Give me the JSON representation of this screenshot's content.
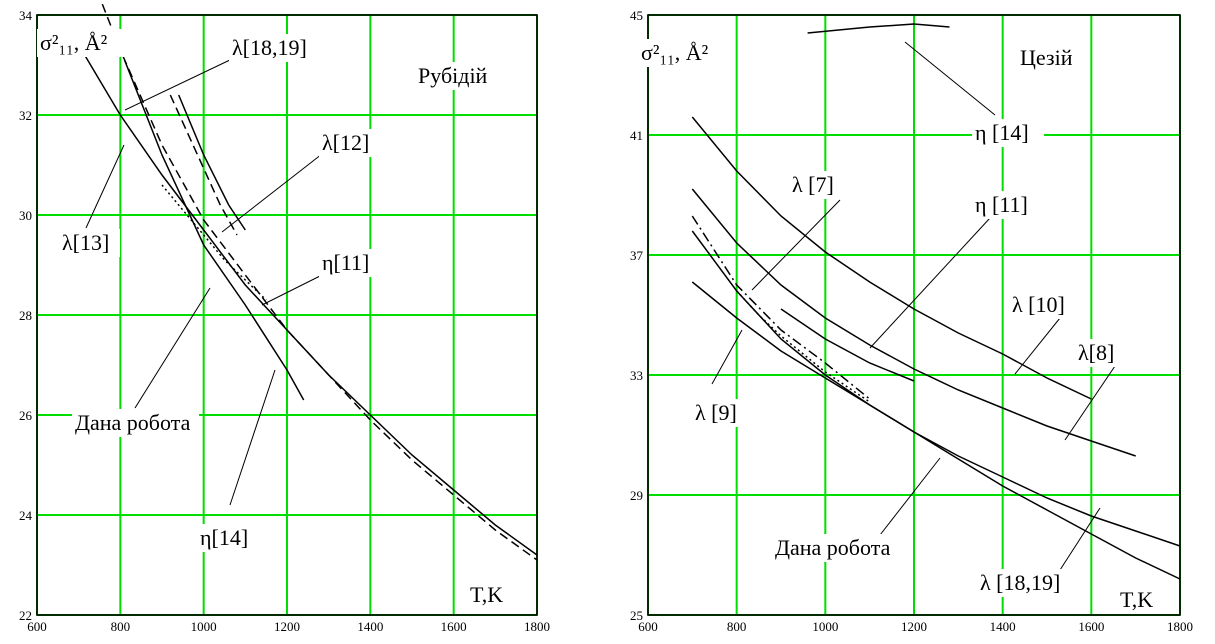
{
  "chart_data": [
    {
      "type": "line",
      "title": "Рубідій",
      "ylabel": "σ²₁₁, Å²",
      "xlabel": "T,K",
      "grid": true,
      "xlim": [
        600,
        1800
      ],
      "ylim": [
        22,
        34
      ],
      "xticks": [
        "600",
        "800",
        "1000",
        "1200",
        "1400",
        "1600",
        "1800"
      ],
      "yticks": [
        "22",
        "24",
        "26",
        "28",
        "30",
        "32",
        "34"
      ],
      "series": [
        {
          "name": "Дана робота",
          "style": "solid",
          "x": [
            700,
            800,
            900,
            1000,
            1100,
            1200,
            1300,
            1400,
            1500,
            1600,
            1700,
            1800
          ],
          "y": [
            33.4,
            32.0,
            30.8,
            29.7,
            28.6,
            27.7,
            26.8,
            26.0,
            25.2,
            24.5,
            23.8,
            23.2
          ]
        },
        {
          "name": "λ[18,19]",
          "style": "dashed",
          "x": [
            720,
            800,
            900,
            1000,
            1100,
            1200,
            1300,
            1400,
            1500,
            1600,
            1700,
            1800
          ],
          "y": [
            35.0,
            33.3,
            31.4,
            29.9,
            28.8,
            27.7,
            26.8,
            25.9,
            25.1,
            24.4,
            23.7,
            23.1
          ]
        },
        {
          "name": "λ[13]",
          "style": "solid",
          "x": [
            810,
            900,
            1000,
            1100,
            1200,
            1240
          ],
          "y": [
            33.1,
            31.2,
            29.4,
            28.2,
            26.9,
            26.3
          ]
        },
        {
          "name": "λ[12]",
          "style": "dashed",
          "x": [
            920,
            980,
            1040,
            1080
          ],
          "y": [
            32.4,
            31.3,
            30.2,
            29.6
          ]
        },
        {
          "name": "η[14]",
          "style": "solid",
          "x": [
            940,
            1000,
            1060,
            1100
          ],
          "y": [
            32.4,
            31.2,
            30.2,
            29.7
          ]
        },
        {
          "name": "η[11]",
          "style": "dotted",
          "x": [
            900,
            950,
            1000,
            1050,
            1100,
            1150
          ],
          "y": [
            30.6,
            30.1,
            29.6,
            29.1,
            28.7,
            28.3
          ]
        }
      ],
      "annotations": [
        "λ[18,19]",
        "λ[12]",
        "λ[13]",
        "η[11]",
        "Дана робота",
        "η[14]"
      ]
    },
    {
      "type": "line",
      "title": "Цезій",
      "ylabel": "σ²₁₁, Å²",
      "xlabel": "T,K",
      "grid": true,
      "xlim": [
        600,
        1800
      ],
      "ylim": [
        25,
        45
      ],
      "xticks": [
        "600",
        "800",
        "1000",
        "1200",
        "1400",
        "1600",
        "1800"
      ],
      "yticks": [
        "25",
        "29",
        "33",
        "37",
        "41",
        "45"
      ],
      "series": [
        {
          "name": "η [14]",
          "style": "solid",
          "x": [
            960,
            1100,
            1200,
            1280
          ],
          "y": [
            44.4,
            44.6,
            44.7,
            44.6
          ]
        },
        {
          "name": "λ [10]",
          "style": "solid",
          "x": [
            700,
            800,
            900,
            1000,
            1100,
            1200,
            1300,
            1400,
            1500,
            1600
          ],
          "y": [
            41.6,
            39.8,
            38.3,
            37.1,
            36.1,
            35.2,
            34.4,
            33.7,
            32.9,
            32.2
          ]
        },
        {
          "name": "λ[8]",
          "style": "solid",
          "x": [
            700,
            800,
            900,
            1000,
            1100,
            1200,
            1300,
            1400,
            1500,
            1600,
            1700
          ],
          "y": [
            39.2,
            37.4,
            36.0,
            34.9,
            34.0,
            33.2,
            32.5,
            31.9,
            31.3,
            30.8,
            30.3
          ]
        },
        {
          "name": "η [11]",
          "style": "solid",
          "x": [
            900,
            1000,
            1100,
            1200
          ],
          "y": [
            35.2,
            34.2,
            33.4,
            32.8
          ]
        },
        {
          "name": "λ [18,19]",
          "style": "solid",
          "x": [
            700,
            800,
            900,
            1000,
            1100,
            1200,
            1300,
            1400,
            1500,
            1600,
            1700,
            1800
          ],
          "y": [
            37.8,
            35.8,
            34.2,
            33.0,
            32.0,
            31.1,
            30.3,
            29.6,
            28.9,
            28.3,
            27.8,
            27.3
          ]
        },
        {
          "name": "Дана робота",
          "style": "solid",
          "x": [
            700,
            800,
            900,
            1000,
            1100,
            1200,
            1300,
            1400,
            1500,
            1600,
            1700,
            1800
          ],
          "y": [
            36.1,
            34.9,
            33.8,
            32.9,
            32.0,
            31.1,
            30.2,
            29.3,
            28.5,
            27.7,
            26.9,
            26.2
          ]
        },
        {
          "name": "λ [7]",
          "style": "dashdot",
          "x": [
            700,
            800,
            900,
            1000,
            1100
          ],
          "y": [
            38.3,
            36.0,
            34.5,
            33.4,
            32.2
          ]
        },
        {
          "name": "λ [9]",
          "style": "dotted",
          "x": [
            800,
            850,
            900,
            950,
            1000,
            1050,
            1100
          ],
          "y": [
            35.8,
            35.0,
            34.3,
            33.7,
            33.1,
            32.6,
            32.1
          ]
        }
      ],
      "annotations": [
        "η [14]",
        "λ [7]",
        "η [11]",
        "λ [10]",
        "λ[8]",
        "λ [9]",
        "Дана робота",
        "λ [18,19]"
      ]
    }
  ]
}
